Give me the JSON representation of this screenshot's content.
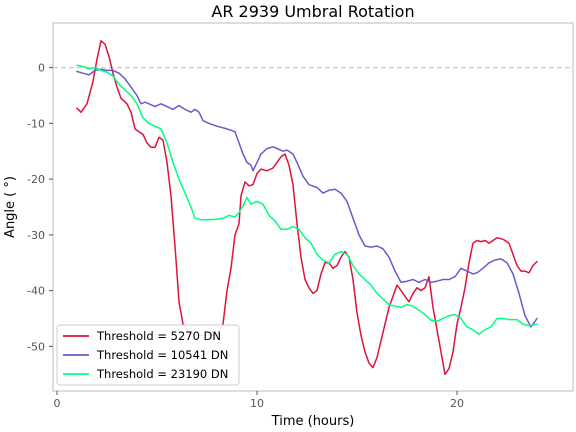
{
  "chart_data": {
    "type": "line",
    "title": "AR 2939 Umbral Rotation",
    "xlabel": "Time (hours)",
    "ylabel": "Angle ( °)",
    "xlim": [
      -0.2,
      25.8
    ],
    "ylim": [
      -58,
      8
    ],
    "xticks": [
      0,
      10,
      20
    ],
    "yticks": [
      0,
      -10,
      -20,
      -30,
      -40,
      -50
    ],
    "grid": false,
    "reference_line": {
      "y": 0,
      "style": "dashed",
      "color": "#cccccc"
    },
    "legend_position": "lower-left",
    "series": [
      {
        "name": "Threshold = 5270 DN",
        "color": "#dc143c",
        "points": [
          [
            1.0,
            -7.3
          ],
          [
            1.2,
            -8.0
          ],
          [
            1.5,
            -6.5
          ],
          [
            1.8,
            -2.5
          ],
          [
            2.0,
            1.5
          ],
          [
            2.2,
            4.8
          ],
          [
            2.4,
            4.2
          ],
          [
            2.6,
            2.0
          ],
          [
            2.8,
            -1.0
          ],
          [
            3.0,
            -3.5
          ],
          [
            3.2,
            -5.5
          ],
          [
            3.5,
            -6.5
          ],
          [
            3.7,
            -8.0
          ],
          [
            3.9,
            -11.0
          ],
          [
            4.1,
            -11.5
          ],
          [
            4.3,
            -12.0
          ],
          [
            4.5,
            -13.5
          ],
          [
            4.7,
            -14.3
          ],
          [
            4.9,
            -14.3
          ],
          [
            5.1,
            -12.5
          ],
          [
            5.3,
            -13.0
          ],
          [
            5.5,
            -17.0
          ],
          [
            5.7,
            -23.0
          ],
          [
            5.9,
            -32.0
          ],
          [
            6.1,
            -42.0
          ],
          [
            6.3,
            -46.0
          ],
          [
            6.6,
            -47.5
          ],
          [
            7.0,
            -48.0
          ],
          [
            7.5,
            -48.0
          ],
          [
            8.0,
            -48.0
          ],
          [
            8.3,
            -46.0
          ],
          [
            8.5,
            -40.0
          ],
          [
            8.7,
            -36.0
          ],
          [
            8.9,
            -30.0
          ],
          [
            9.1,
            -28.0
          ],
          [
            9.2,
            -23.0
          ],
          [
            9.4,
            -20.5
          ],
          [
            9.6,
            -21.2
          ],
          [
            9.8,
            -21.0
          ],
          [
            10.0,
            -19.0
          ],
          [
            10.2,
            -18.2
          ],
          [
            10.5,
            -18.5
          ],
          [
            10.8,
            -18.0
          ],
          [
            11.0,
            -17.0
          ],
          [
            11.2,
            -16.0
          ],
          [
            11.4,
            -15.5
          ],
          [
            11.6,
            -17.5
          ],
          [
            11.8,
            -21.0
          ],
          [
            12.0,
            -28.0
          ],
          [
            12.2,
            -34.0
          ],
          [
            12.4,
            -38.0
          ],
          [
            12.6,
            -39.5
          ],
          [
            12.8,
            -40.5
          ],
          [
            13.0,
            -40.0
          ],
          [
            13.2,
            -37.0
          ],
          [
            13.4,
            -35.0
          ],
          [
            13.6,
            -35.0
          ],
          [
            13.8,
            -36.0
          ],
          [
            14.0,
            -35.5
          ],
          [
            14.2,
            -34.0
          ],
          [
            14.4,
            -33.0
          ],
          [
            14.6,
            -34.0
          ],
          [
            14.8,
            -38.0
          ],
          [
            15.0,
            -44.0
          ],
          [
            15.2,
            -48.0
          ],
          [
            15.4,
            -51.0
          ],
          [
            15.6,
            -53.0
          ],
          [
            15.8,
            -53.8
          ],
          [
            16.0,
            -52.0
          ],
          [
            16.2,
            -49.0
          ],
          [
            16.4,
            -46.0
          ],
          [
            16.6,
            -43.0
          ],
          [
            16.8,
            -41.0
          ],
          [
            17.0,
            -39.0
          ],
          [
            17.2,
            -40.0
          ],
          [
            17.4,
            -41.0
          ],
          [
            17.6,
            -42.0
          ],
          [
            17.8,
            -40.5
          ],
          [
            18.0,
            -39.5
          ],
          [
            18.2,
            -40.0
          ],
          [
            18.4,
            -39.5
          ],
          [
            18.6,
            -37.5
          ],
          [
            18.8,
            -43.0
          ],
          [
            19.0,
            -47.0
          ],
          [
            19.2,
            -51.0
          ],
          [
            19.4,
            -55.0
          ],
          [
            19.6,
            -54.0
          ],
          [
            19.8,
            -51.0
          ],
          [
            20.0,
            -46.0
          ],
          [
            20.2,
            -43.0
          ],
          [
            20.4,
            -39.5
          ],
          [
            20.6,
            -35.0
          ],
          [
            20.8,
            -31.5
          ],
          [
            21.0,
            -31.0
          ],
          [
            21.2,
            -31.2
          ],
          [
            21.4,
            -31.0
          ],
          [
            21.6,
            -31.5
          ],
          [
            21.8,
            -31.0
          ],
          [
            22.0,
            -30.5
          ],
          [
            22.3,
            -30.8
          ],
          [
            22.6,
            -31.5
          ],
          [
            22.8,
            -33.5
          ],
          [
            23.0,
            -35.5
          ],
          [
            23.2,
            -36.5
          ],
          [
            23.4,
            -36.5
          ],
          [
            23.6,
            -36.8
          ],
          [
            23.8,
            -35.5
          ],
          [
            24.0,
            -34.8
          ]
        ]
      },
      {
        "name": "Threshold = 10541 DN",
        "color": "#6a5acd",
        "points": [
          [
            1.0,
            -0.7
          ],
          [
            1.3,
            -1.0
          ],
          [
            1.6,
            -1.3
          ],
          [
            1.9,
            -0.5
          ],
          [
            2.2,
            -0.3
          ],
          [
            2.5,
            -0.5
          ],
          [
            2.8,
            -0.5
          ],
          [
            3.1,
            -1.0
          ],
          [
            3.4,
            -2.0
          ],
          [
            3.7,
            -3.5
          ],
          [
            4.0,
            -5.0
          ],
          [
            4.2,
            -6.5
          ],
          [
            4.4,
            -6.2
          ],
          [
            4.6,
            -6.5
          ],
          [
            4.9,
            -7.0
          ],
          [
            5.2,
            -6.5
          ],
          [
            5.5,
            -7.0
          ],
          [
            5.8,
            -7.5
          ],
          [
            6.1,
            -6.8
          ],
          [
            6.4,
            -7.5
          ],
          [
            6.7,
            -8.0
          ],
          [
            6.9,
            -7.5
          ],
          [
            7.1,
            -8.0
          ],
          [
            7.3,
            -9.5
          ],
          [
            7.6,
            -10.0
          ],
          [
            8.0,
            -10.5
          ],
          [
            8.5,
            -11.0
          ],
          [
            8.9,
            -11.5
          ],
          [
            9.1,
            -13.5
          ],
          [
            9.3,
            -15.5
          ],
          [
            9.5,
            -17.0
          ],
          [
            9.7,
            -17.5
          ],
          [
            9.8,
            -18.5
          ],
          [
            10.0,
            -17.0
          ],
          [
            10.2,
            -15.5
          ],
          [
            10.5,
            -14.5
          ],
          [
            10.8,
            -14.2
          ],
          [
            11.0,
            -14.5
          ],
          [
            11.3,
            -15.0
          ],
          [
            11.5,
            -14.8
          ],
          [
            11.8,
            -15.5
          ],
          [
            12.0,
            -17.0
          ],
          [
            12.3,
            -19.5
          ],
          [
            12.6,
            -21.0
          ],
          [
            13.0,
            -21.5
          ],
          [
            13.3,
            -22.5
          ],
          [
            13.6,
            -22.0
          ],
          [
            13.9,
            -21.8
          ],
          [
            14.2,
            -22.5
          ],
          [
            14.5,
            -24.0
          ],
          [
            14.8,
            -27.0
          ],
          [
            15.1,
            -30.0
          ],
          [
            15.4,
            -32.0
          ],
          [
            15.7,
            -32.2
          ],
          [
            16.0,
            -32.0
          ],
          [
            16.3,
            -32.5
          ],
          [
            16.6,
            -34.0
          ],
          [
            16.9,
            -36.5
          ],
          [
            17.2,
            -38.5
          ],
          [
            17.5,
            -38.3
          ],
          [
            17.8,
            -38.0
          ],
          [
            18.1,
            -38.5
          ],
          [
            18.4,
            -38.0
          ],
          [
            18.7,
            -38.5
          ],
          [
            19.0,
            -38.3
          ],
          [
            19.3,
            -38.0
          ],
          [
            19.6,
            -38.0
          ],
          [
            19.9,
            -37.5
          ],
          [
            20.2,
            -36.0
          ],
          [
            20.5,
            -36.5
          ],
          [
            20.8,
            -37.0
          ],
          [
            21.0,
            -36.8
          ],
          [
            21.3,
            -36.0
          ],
          [
            21.6,
            -35.0
          ],
          [
            21.9,
            -34.5
          ],
          [
            22.2,
            -34.3
          ],
          [
            22.5,
            -35.0
          ],
          [
            22.8,
            -37.0
          ],
          [
            23.1,
            -40.5
          ],
          [
            23.4,
            -44.5
          ],
          [
            23.7,
            -46.5
          ],
          [
            24.0,
            -45.0
          ]
        ]
      },
      {
        "name": "Threshold = 23190 DN",
        "color": "#00ff7f",
        "points": [
          [
            1.0,
            0.4
          ],
          [
            1.3,
            0.2
          ],
          [
            1.6,
            -0.2
          ],
          [
            1.9,
            0.0
          ],
          [
            2.2,
            -0.5
          ],
          [
            2.5,
            -0.8
          ],
          [
            2.8,
            -1.5
          ],
          [
            3.1,
            -3.0
          ],
          [
            3.4,
            -4.0
          ],
          [
            3.7,
            -5.0
          ],
          [
            4.0,
            -6.5
          ],
          [
            4.3,
            -9.0
          ],
          [
            4.6,
            -10.0
          ],
          [
            4.9,
            -10.5
          ],
          [
            5.2,
            -11.0
          ],
          [
            5.5,
            -13.5
          ],
          [
            5.8,
            -17.0
          ],
          [
            6.1,
            -20.0
          ],
          [
            6.4,
            -22.5
          ],
          [
            6.7,
            -25.0
          ],
          [
            6.9,
            -27.0
          ],
          [
            7.2,
            -27.3
          ],
          [
            7.5,
            -27.3
          ],
          [
            8.0,
            -27.2
          ],
          [
            8.3,
            -27.0
          ],
          [
            8.6,
            -26.5
          ],
          [
            8.9,
            -26.8
          ],
          [
            9.1,
            -26.0
          ],
          [
            9.3,
            -24.8
          ],
          [
            9.5,
            -23.3
          ],
          [
            9.7,
            -24.5
          ],
          [
            10.0,
            -24.0
          ],
          [
            10.3,
            -24.5
          ],
          [
            10.6,
            -26.5
          ],
          [
            10.9,
            -27.5
          ],
          [
            11.2,
            -29.0
          ],
          [
            11.5,
            -29.0
          ],
          [
            11.8,
            -28.5
          ],
          [
            12.1,
            -29.0
          ],
          [
            12.4,
            -30.5
          ],
          [
            12.7,
            -31.5
          ],
          [
            13.0,
            -33.5
          ],
          [
            13.3,
            -34.5
          ],
          [
            13.6,
            -35.0
          ],
          [
            13.9,
            -33.5
          ],
          [
            14.2,
            -33.0
          ],
          [
            14.5,
            -33.5
          ],
          [
            14.8,
            -35.5
          ],
          [
            15.1,
            -37.0
          ],
          [
            15.4,
            -38.0
          ],
          [
            15.7,
            -39.0
          ],
          [
            16.0,
            -40.5
          ],
          [
            16.3,
            -41.5
          ],
          [
            16.6,
            -42.5
          ],
          [
            16.9,
            -42.8
          ],
          [
            17.2,
            -43.0
          ],
          [
            17.5,
            -42.5
          ],
          [
            17.8,
            -42.8
          ],
          [
            18.1,
            -43.5
          ],
          [
            18.4,
            -44.3
          ],
          [
            18.7,
            -45.3
          ],
          [
            19.0,
            -45.5
          ],
          [
            19.3,
            -45.0
          ],
          [
            19.6,
            -44.5
          ],
          [
            19.9,
            -44.3
          ],
          [
            20.2,
            -45.0
          ],
          [
            20.5,
            -46.5
          ],
          [
            20.8,
            -47.0
          ],
          [
            21.1,
            -47.8
          ],
          [
            21.4,
            -47.0
          ],
          [
            21.7,
            -46.5
          ],
          [
            22.0,
            -45.0
          ],
          [
            22.3,
            -45.0
          ],
          [
            22.6,
            -45.2
          ],
          [
            23.0,
            -45.2
          ],
          [
            23.3,
            -46.0
          ],
          [
            23.6,
            -46.3
          ],
          [
            24.0,
            -46.0
          ]
        ]
      }
    ]
  }
}
